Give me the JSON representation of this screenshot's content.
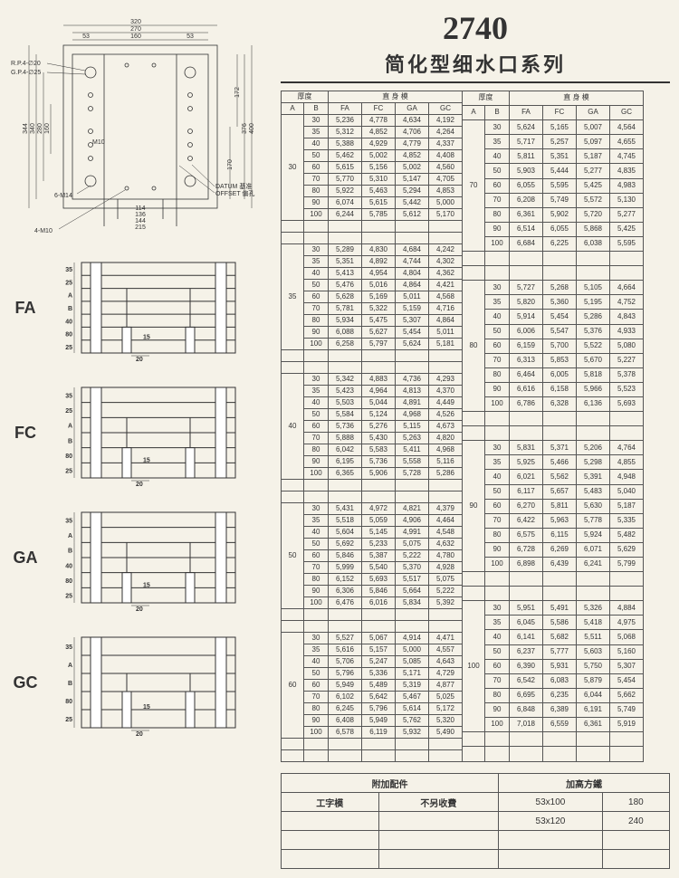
{
  "header": {
    "model_number": "2740",
    "model_name": "简化型细水口系列"
  },
  "top_drawing": {
    "dims_top": [
      "320",
      "270",
      "160",
      "53",
      "53"
    ],
    "dims_left": [
      "344",
      "340",
      "280",
      "160"
    ],
    "dims_right": [
      "400",
      "376",
      "172",
      "170"
    ],
    "dims_bottom": [
      "114",
      "136",
      "144",
      "215"
    ],
    "callouts": [
      "R.P.4-∅20",
      "G.P.4-∅25",
      "M10",
      "6-M14",
      "4-M10",
      "DATUM 基准",
      "OFFSET 偏孔"
    ]
  },
  "figures": [
    {
      "label": "FA",
      "left_dims": [
        "35",
        "25",
        "A",
        "B",
        "40",
        "80",
        "25"
      ],
      "inner": [
        "15",
        "20"
      ]
    },
    {
      "label": "FC",
      "left_dims": [
        "35",
        "25",
        "A",
        "B",
        "80",
        "25"
      ],
      "inner": [
        "15",
        "20"
      ]
    },
    {
      "label": "GA",
      "left_dims": [
        "35",
        "A",
        "B",
        "40",
        "80",
        "25"
      ],
      "inner": [
        "15",
        "20"
      ]
    },
    {
      "label": "GC",
      "left_dims": [
        "35",
        "A",
        "B",
        "80",
        "25"
      ],
      "inner": [
        "15",
        "20"
      ]
    }
  ],
  "table_headers": {
    "thickness": "厚度",
    "straight": "直 身 模",
    "cols": [
      "A",
      "B",
      "FA",
      "FC",
      "GA",
      "GC"
    ]
  },
  "left_groups": [
    {
      "a": 30,
      "rows": [
        [
          30,
          "5,236",
          "4,778",
          "4,634",
          "4,192"
        ],
        [
          35,
          "5,312",
          "4,852",
          "4,706",
          "4,264"
        ],
        [
          40,
          "5,388",
          "4,929",
          "4,779",
          "4,337"
        ],
        [
          50,
          "5,462",
          "5,002",
          "4,852",
          "4,408"
        ],
        [
          60,
          "5,615",
          "5,156",
          "5,002",
          "4,560"
        ],
        [
          70,
          "5,770",
          "5,310",
          "5,147",
          "4,705"
        ],
        [
          80,
          "5,922",
          "5,463",
          "5,294",
          "4,853"
        ],
        [
          90,
          "6,074",
          "5,615",
          "5,442",
          "5,000"
        ],
        [
          100,
          "6,244",
          "5,785",
          "5,612",
          "5,170"
        ]
      ]
    },
    {
      "a": 35,
      "rows": [
        [
          30,
          "5,289",
          "4,830",
          "4,684",
          "4,242"
        ],
        [
          35,
          "5,351",
          "4,892",
          "4,744",
          "4,302"
        ],
        [
          40,
          "5,413",
          "4,954",
          "4,804",
          "4,362"
        ],
        [
          50,
          "5,476",
          "5,016",
          "4,864",
          "4,421"
        ],
        [
          60,
          "5,628",
          "5,169",
          "5,011",
          "4,568"
        ],
        [
          70,
          "5,781",
          "5,322",
          "5,159",
          "4,716"
        ],
        [
          80,
          "5,934",
          "5,475",
          "5,307",
          "4,864"
        ],
        [
          90,
          "6,088",
          "5,627",
          "5,454",
          "5,011"
        ],
        [
          100,
          "6,258",
          "5,797",
          "5,624",
          "5,181"
        ]
      ]
    },
    {
      "a": 40,
      "rows": [
        [
          30,
          "5,342",
          "4,883",
          "4,736",
          "4,293"
        ],
        [
          35,
          "5,423",
          "4,964",
          "4,813",
          "4,370"
        ],
        [
          40,
          "5,503",
          "5,044",
          "4,891",
          "4,449"
        ],
        [
          50,
          "5,584",
          "5,124",
          "4,968",
          "4,526"
        ],
        [
          60,
          "5,736",
          "5,276",
          "5,115",
          "4,673"
        ],
        [
          70,
          "5,888",
          "5,430",
          "5,263",
          "4,820"
        ],
        [
          80,
          "6,042",
          "5,583",
          "5,411",
          "4,968"
        ],
        [
          90,
          "6,195",
          "5,736",
          "5,558",
          "5,116"
        ],
        [
          100,
          "6,365",
          "5,906",
          "5,728",
          "5,286"
        ]
      ]
    },
    {
      "a": 50,
      "rows": [
        [
          30,
          "5,431",
          "4,972",
          "4,821",
          "4,379"
        ],
        [
          35,
          "5,518",
          "5,059",
          "4,906",
          "4,464"
        ],
        [
          40,
          "5,604",
          "5,145",
          "4,991",
          "4,548"
        ],
        [
          50,
          "5,692",
          "5,233",
          "5,075",
          "4,632"
        ],
        [
          60,
          "5,846",
          "5,387",
          "5,222",
          "4,780"
        ],
        [
          70,
          "5,999",
          "5,540",
          "5,370",
          "4,928"
        ],
        [
          80,
          "6,152",
          "5,693",
          "5,517",
          "5,075"
        ],
        [
          90,
          "6,306",
          "5,846",
          "5,664",
          "5,222"
        ],
        [
          100,
          "6,476",
          "6,016",
          "5,834",
          "5,392"
        ]
      ]
    },
    {
      "a": 60,
      "rows": [
        [
          30,
          "5,527",
          "5,067",
          "4,914",
          "4,471"
        ],
        [
          35,
          "5,616",
          "5,157",
          "5,000",
          "4,557"
        ],
        [
          40,
          "5,706",
          "5,247",
          "5,085",
          "4,643"
        ],
        [
          50,
          "5,796",
          "5,336",
          "5,171",
          "4,729"
        ],
        [
          60,
          "5,949",
          "5,489",
          "5,319",
          "4,877"
        ],
        [
          70,
          "6,102",
          "5,642",
          "5,467",
          "5,025"
        ],
        [
          80,
          "6,245",
          "5,796",
          "5,614",
          "5,172"
        ],
        [
          90,
          "6,408",
          "5,949",
          "5,762",
          "5,320"
        ],
        [
          100,
          "6,578",
          "6,119",
          "5,932",
          "5,490"
        ]
      ]
    }
  ],
  "right_groups": [
    {
      "a": 70,
      "rows": [
        [
          30,
          "5,624",
          "5,165",
          "5,007",
          "4,564"
        ],
        [
          35,
          "5,717",
          "5,257",
          "5,097",
          "4,655"
        ],
        [
          40,
          "5,811",
          "5,351",
          "5,187",
          "4,745"
        ],
        [
          50,
          "5,903",
          "5,444",
          "5,277",
          "4,835"
        ],
        [
          60,
          "6,055",
          "5,595",
          "5,425",
          "4,983"
        ],
        [
          70,
          "6,208",
          "5,749",
          "5,572",
          "5,130"
        ],
        [
          80,
          "6,361",
          "5,902",
          "5,720",
          "5,277"
        ],
        [
          90,
          "6,514",
          "6,055",
          "5,868",
          "5,425"
        ],
        [
          100,
          "6,684",
          "6,225",
          "6,038",
          "5,595"
        ]
      ]
    },
    {
      "a": 80,
      "rows": [
        [
          30,
          "5,727",
          "5,268",
          "5,105",
          "4,664"
        ],
        [
          35,
          "5,820",
          "5,360",
          "5,195",
          "4,752"
        ],
        [
          40,
          "5,914",
          "5,454",
          "5,286",
          "4,843"
        ],
        [
          50,
          "6,006",
          "5,547",
          "5,376",
          "4,933"
        ],
        [
          60,
          "6,159",
          "5,700",
          "5,522",
          "5,080"
        ],
        [
          70,
          "6,313",
          "5,853",
          "5,670",
          "5,227"
        ],
        [
          80,
          "6,464",
          "6,005",
          "5,818",
          "5,378"
        ],
        [
          90,
          "6,616",
          "6,158",
          "5,966",
          "5,523"
        ],
        [
          100,
          "6,786",
          "6,328",
          "6,136",
          "5,693"
        ]
      ]
    },
    {
      "a": 90,
      "rows": [
        [
          30,
          "5,831",
          "5,371",
          "5,206",
          "4,764"
        ],
        [
          35,
          "5,925",
          "5,466",
          "5,298",
          "4,855"
        ],
        [
          40,
          "6,021",
          "5,562",
          "5,391",
          "4,948"
        ],
        [
          50,
          "6,117",
          "5,657",
          "5,483",
          "5,040"
        ],
        [
          60,
          "6,270",
          "5,811",
          "5,630",
          "5,187"
        ],
        [
          70,
          "6,422",
          "5,963",
          "5,778",
          "5,335"
        ],
        [
          80,
          "6,575",
          "6,115",
          "5,924",
          "5,482"
        ],
        [
          90,
          "6,728",
          "6,269",
          "6,071",
          "5,629"
        ],
        [
          100,
          "6,898",
          "6,439",
          "6,241",
          "5,799"
        ]
      ]
    },
    {
      "a": 100,
      "rows": [
        [
          30,
          "5,951",
          "5,491",
          "5,326",
          "4,884"
        ],
        [
          35,
          "6,045",
          "5,586",
          "5,418",
          "4,975"
        ],
        [
          40,
          "6,141",
          "5,682",
          "5,511",
          "5,068"
        ],
        [
          50,
          "6,237",
          "5,777",
          "5,603",
          "5,160"
        ],
        [
          60,
          "6,390",
          "5,931",
          "5,750",
          "5,307"
        ],
        [
          70,
          "6,542",
          "6,083",
          "5,879",
          "5,454"
        ],
        [
          80,
          "6,695",
          "6,235",
          "6,044",
          "5,662"
        ],
        [
          90,
          "6,848",
          "6,389",
          "6,191",
          "5,749"
        ],
        [
          100,
          "7,018",
          "6,559",
          "6,361",
          "5,919"
        ]
      ]
    }
  ],
  "bottom_headers": {
    "left": "附加配件",
    "right": "加高方鐵",
    "sub_left1": "工字模",
    "sub_left2": "不另收費"
  },
  "bottom_rows": [
    [
      "",
      "",
      "53x100",
      "180"
    ],
    [
      "",
      "",
      "53x120",
      "240"
    ],
    [
      "",
      "",
      "",
      ""
    ],
    [
      "",
      "",
      "",
      ""
    ]
  ],
  "colors": {
    "page_bg": "#f5f2e8",
    "line": "#333333",
    "text": "#333333"
  }
}
